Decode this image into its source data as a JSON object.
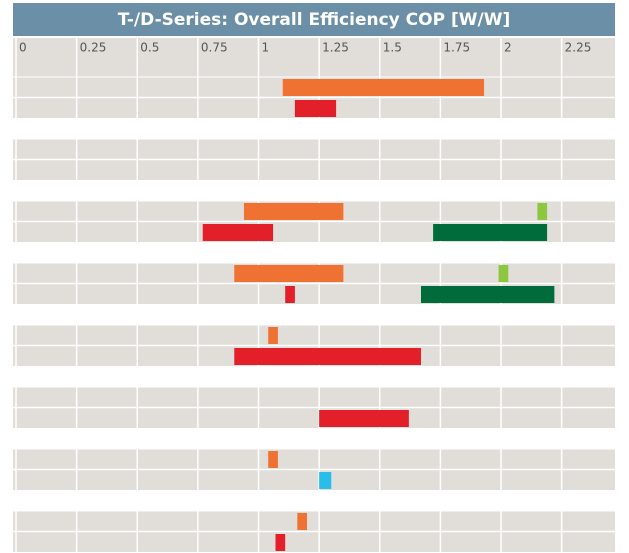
{
  "chart_data": {
    "type": "range_bar",
    "title": "T-/D-Series: Overall Efficiency COP [W/W]",
    "xlim": [
      0,
      2.47
    ],
    "xticks": [
      0,
      0.25,
      0.5,
      0.75,
      1,
      1.25,
      1.5,
      1.75,
      2,
      2.25
    ],
    "grid": true,
    "rows": [
      [
        {
          "start": 1.1,
          "end": 1.93,
          "color": "#f07232"
        }
      ],
      [
        {
          "start": 1.15,
          "end": 1.32,
          "color": "#e3202a"
        }
      ],
      [],
      [],
      [
        {
          "start": 0.94,
          "end": 1.35,
          "color": "#f07232"
        },
        {
          "start": 2.15,
          "end": 2.19,
          "color": "#8dc63f"
        }
      ],
      [
        {
          "start": 0.77,
          "end": 1.06,
          "color": "#e3202a"
        },
        {
          "start": 1.72,
          "end": 2.19,
          "color": "#006b3b"
        }
      ],
      [
        {
          "start": 0.9,
          "end": 1.35,
          "color": "#f07232"
        },
        {
          "start": 1.99,
          "end": 2.03,
          "color": "#8dc63f"
        }
      ],
      [
        {
          "start": 1.11,
          "end": 1.15,
          "color": "#e3202a"
        },
        {
          "start": 1.67,
          "end": 2.22,
          "color": "#006b3b"
        }
      ],
      [
        {
          "start": 1.04,
          "end": 1.08,
          "color": "#f07232"
        }
      ],
      [
        {
          "start": 0.9,
          "end": 1.67,
          "color": "#e3202a"
        }
      ],
      [],
      [
        {
          "start": 1.25,
          "end": 1.62,
          "color": "#e3202a"
        }
      ],
      [
        {
          "start": 1.04,
          "end": 1.08,
          "color": "#f07232"
        }
      ],
      [
        {
          "start": 1.25,
          "end": 1.3,
          "color": "#29bde9"
        }
      ],
      [
        {
          "start": 1.16,
          "end": 1.2,
          "color": "#f07232"
        }
      ],
      [
        {
          "start": 1.07,
          "end": 1.11,
          "color": "#e3202a"
        }
      ]
    ]
  }
}
